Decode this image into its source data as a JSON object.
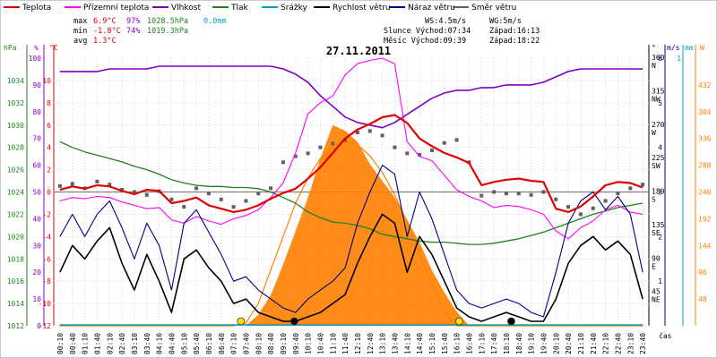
{
  "legend": [
    {
      "label": "Teplota",
      "color": "#e00000"
    },
    {
      "label": "Přízemní teplota",
      "color": "#ff00ff"
    },
    {
      "label": "Vlhkost",
      "color": "#8000c0"
    },
    {
      "label": "Tlak",
      "color": "#208020"
    },
    {
      "label": "Srážky",
      "color": "#00a0c0"
    },
    {
      "label": "Rychlost větru",
      "color": "#000000"
    },
    {
      "label": "Náraz větru",
      "color": "#000080"
    },
    {
      "label": "Směr větru",
      "color": "#606060"
    }
  ],
  "stats": {
    "max": {
      "label": "max",
      "temp": "6.9°C",
      "hum": "97%",
      "press": "1028.5hPa",
      "rain": "0.0mm"
    },
    "min": {
      "label": "min",
      "temp": "-1.8°C",
      "hum": "74%",
      "press": "1019.3hPa"
    },
    "avg": {
      "label": "avg",
      "temp": "1.3°C"
    }
  },
  "wind": {
    "ws": "WS:4.5m/s",
    "wg": "WG:5m/s"
  },
  "sun": {
    "rise": "Slunce Východ:07:34",
    "set": "Západ:16:13"
  },
  "moon": {
    "rise": "Měsíc  Východ:09:39",
    "set": "Západ:18:22"
  },
  "chart_data": {
    "type": "line",
    "title": "27.11.2011",
    "xlabel": "čas",
    "x_ticks": [
      "00:10",
      "00:40",
      "01:10",
      "01:40",
      "02:10",
      "02:40",
      "03:10",
      "03:40",
      "04:10",
      "04:40",
      "05:10",
      "05:40",
      "06:10",
      "06:40",
      "07:10",
      "07:40",
      "08:10",
      "08:40",
      "09:10",
      "09:40",
      "10:10",
      "10:40",
      "11:10",
      "11:40",
      "12:10",
      "12:40",
      "13:10",
      "13:40",
      "14:10",
      "14:40",
      "15:10",
      "15:40",
      "16:10",
      "16:40",
      "17:10",
      "17:40",
      "18:10",
      "18:40",
      "19:10",
      "19:40",
      "20:10",
      "20:40",
      "21:10",
      "21:40",
      "22:10",
      "22:40",
      "23:10",
      "23:40"
    ],
    "axes": {
      "hpa": {
        "label": "hPa",
        "color": "#208020",
        "range": [
          1012,
          1036
        ],
        "ticks": [
          "1034",
          "1032",
          "1030",
          "1028",
          "1026",
          "1024",
          "1022",
          "1020",
          "1018",
          "1016",
          "1014",
          "1012"
        ]
      },
      "percent": {
        "label": "%",
        "color": "#8000c0",
        "range": [
          0,
          100
        ],
        "ticks": [
          "100",
          "90",
          "80",
          "70",
          "60",
          "50",
          "40",
          "30",
          "20",
          "10",
          "0"
        ]
      },
      "celsius": {
        "label": "°C",
        "color": "#e00000",
        "range": [
          -12,
          12
        ],
        "ticks": [
          "10",
          "8",
          "6",
          "4",
          "2",
          "0",
          "-2",
          "-4",
          "-6",
          "-8",
          "-10",
          "-12"
        ]
      },
      "direction": {
        "label": "°",
        "color": "#000000",
        "range": [
          0,
          360
        ],
        "ticks": [
          "360 N",
          "315 NW",
          "270 W",
          "225 SW",
          "180 S",
          "135 SE",
          "90 E",
          "45 NE"
        ]
      },
      "ms": {
        "label": "m/s",
        "color": "#000080",
        "range": [
          0,
          6
        ],
        "ticks": [
          "6",
          "5",
          "4",
          "3",
          "2",
          "1"
        ]
      },
      "mm": {
        "label": "mm",
        "color": "#00a0c0",
        "range": [
          0,
          1
        ],
        "ticks": [
          "1"
        ]
      },
      "w": {
        "label": "W",
        "color": "#ff8000",
        "range": [
          0,
          480
        ],
        "ticks": [
          "432",
          "384",
          "336",
          "288",
          "240",
          "192",
          "144",
          "96",
          "48"
        ]
      }
    },
    "series": [
      {
        "name": "Teplota",
        "unit": "°C",
        "color": "#e00000",
        "values": [
          0.2,
          0.5,
          0.3,
          0.6,
          0.5,
          0.1,
          -0.2,
          0.2,
          0.1,
          -1.0,
          -0.8,
          -0.5,
          -1.2,
          -1.5,
          -1.8,
          -1.6,
          -1.2,
          -0.6,
          -0.1,
          0.3,
          1.2,
          2.2,
          3.5,
          4.8,
          5.6,
          6.1,
          6.7,
          6.9,
          6.2,
          4.8,
          4.1,
          3.5,
          3.1,
          2.6,
          0.6,
          0.9,
          1.1,
          1.2,
          1.0,
          0.9,
          -1.5,
          -1.8,
          -1.3,
          -0.4,
          0.6,
          0.9,
          0.8,
          0.4
        ]
      },
      {
        "name": "Přízemní teplota",
        "unit": "°C",
        "color": "#ff00ff",
        "values": [
          -0.8,
          -0.5,
          -0.6,
          -0.4,
          -0.5,
          -0.9,
          -1.2,
          -1.5,
          -1.4,
          -2.5,
          -2.8,
          -2.2,
          -2.6,
          -2.9,
          -2.4,
          -2.1,
          -1.6,
          -0.5,
          0.8,
          3.5,
          7.0,
          8.0,
          8.6,
          10.5,
          11.5,
          11.8,
          12.0,
          11.5,
          4.5,
          3.2,
          2.8,
          1.5,
          0.2,
          -0.4,
          -0.8,
          -1.4,
          -1.2,
          -1.3,
          -1.6,
          -2.0,
          -3.5,
          -4.2,
          -3.2,
          -2.6,
          -1.6,
          -1.2,
          -1.8,
          -2.0
        ]
      },
      {
        "name": "Vlhkost",
        "unit": "%",
        "color": "#8000c0",
        "values": [
          95,
          95,
          95,
          95,
          96,
          96,
          96,
          96,
          97,
          97,
          97,
          97,
          97,
          97,
          97,
          97,
          97,
          97,
          96,
          94,
          91,
          86,
          82,
          78,
          76,
          75,
          74,
          76,
          79,
          82,
          85,
          87,
          88,
          88,
          89,
          89,
          90,
          90,
          90,
          91,
          93,
          95,
          96,
          96,
          96,
          96,
          96,
          96
        ]
      },
      {
        "name": "Tlak",
        "unit": "hPa",
        "color": "#208020",
        "values": [
          1028.5,
          1028.0,
          1027.6,
          1027.3,
          1027.0,
          1026.7,
          1026.3,
          1026.0,
          1025.6,
          1025.1,
          1024.8,
          1024.6,
          1024.5,
          1024.5,
          1024.4,
          1024.4,
          1024.3,
          1024.0,
          1023.5,
          1023.0,
          1022.2,
          1021.7,
          1021.3,
          1021.2,
          1021.0,
          1020.7,
          1020.2,
          1020.0,
          1019.8,
          1019.6,
          1019.5,
          1019.5,
          1019.4,
          1019.3,
          1019.3,
          1019.4,
          1019.6,
          1019.8,
          1020.1,
          1020.4,
          1020.8,
          1021.2,
          1021.6,
          1022.0,
          1022.3,
          1022.6,
          1022.8,
          1023.0
        ]
      },
      {
        "name": "Rychlost větru",
        "unit": "m/s",
        "color": "#000000",
        "values": [
          1.2,
          1.8,
          1.5,
          1.9,
          2.2,
          1.4,
          0.8,
          1.6,
          1.0,
          0.3,
          1.5,
          1.7,
          1.3,
          1.0,
          0.5,
          0.6,
          0.3,
          0.2,
          0.1,
          0.1,
          0.2,
          0.3,
          0.5,
          0.7,
          1.4,
          2.0,
          2.5,
          2.3,
          1.2,
          2.0,
          1.6,
          1.0,
          0.4,
          0.2,
          0.1,
          0.2,
          0.3,
          0.2,
          0.1,
          0.1,
          0.6,
          1.4,
          1.8,
          2.0,
          1.7,
          1.9,
          1.6,
          0.6
        ]
      },
      {
        "name": "Náraz větru",
        "unit": "m/s",
        "color": "#000080",
        "values": [
          2.0,
          2.5,
          2.0,
          2.5,
          2.8,
          2.2,
          1.5,
          2.3,
          1.8,
          0.8,
          2.3,
          2.6,
          2.1,
          1.6,
          1.0,
          1.1,
          0.8,
          0.6,
          0.4,
          0.3,
          0.6,
          0.8,
          1.0,
          1.3,
          2.3,
          3.0,
          3.6,
          3.4,
          2.0,
          3.0,
          2.4,
          1.6,
          0.8,
          0.5,
          0.4,
          0.5,
          0.6,
          0.5,
          0.3,
          0.2,
          1.2,
          2.3,
          2.8,
          3.0,
          2.6,
          2.9,
          2.5,
          1.2
        ]
      },
      {
        "name": "Směr větru",
        "unit": "°",
        "color": "#606060",
        "values": [
          188,
          191,
          185,
          194,
          190,
          183,
          180,
          176,
          181,
          170,
          160,
          185,
          178,
          170,
          160,
          168,
          178,
          185,
          220,
          228,
          232,
          240,
          245,
          250,
          260,
          262,
          256,
          240,
          232,
          230,
          236,
          246,
          250,
          220,
          175,
          180,
          178,
          178,
          176,
          180,
          170,
          160,
          150,
          158,
          168,
          178,
          185,
          190
        ]
      },
      {
        "name": "Srážky",
        "unit": "mm",
        "color": "#00a0c0",
        "values": [
          0,
          0,
          0,
          0,
          0,
          0,
          0,
          0,
          0,
          0,
          0,
          0,
          0,
          0,
          0,
          0,
          0,
          0,
          0,
          0,
          0,
          0,
          0,
          0,
          0,
          0,
          0,
          0,
          0,
          0,
          0,
          0,
          0,
          0,
          0,
          0,
          0,
          0,
          0,
          0,
          0,
          0,
          0,
          0,
          0,
          0,
          0,
          0
        ]
      },
      {
        "name": "Sluneční záření",
        "unit": "W",
        "color": "#ff8000",
        "values": [
          0,
          0,
          0,
          0,
          0,
          0,
          0,
          0,
          0,
          0,
          0,
          0,
          0,
          0,
          0,
          0,
          20,
          55,
          110,
          170,
          230,
          300,
          360,
          350,
          330,
          290,
          260,
          230,
          190,
          150,
          100,
          60,
          25,
          0,
          0,
          0,
          0,
          0,
          0,
          0,
          0,
          0,
          0,
          0,
          0,
          0,
          0,
          0
        ]
      },
      {
        "name": "Teoretické záření",
        "unit": "W",
        "color": "#ff8000",
        "values": [
          0,
          0,
          0,
          0,
          0,
          0,
          0,
          0,
          0,
          0,
          0,
          0,
          0,
          0,
          0,
          5,
          40,
          100,
          160,
          220,
          265,
          300,
          320,
          330,
          325,
          305,
          275,
          235,
          185,
          130,
          75,
          25,
          0,
          0,
          0,
          0,
          0,
          0,
          0,
          0,
          0,
          0,
          0,
          0,
          0,
          0,
          0,
          0
        ]
      }
    ],
    "markers": [
      {
        "label": "Slunce východ",
        "color": "#ffe000",
        "x_index": 14.6
      },
      {
        "label": "Slunce západ",
        "color": "#ffe000",
        "x_index": 32.2
      },
      {
        "label": "Měsíc východ",
        "color": "#000000",
        "x_index": 18.9
      },
      {
        "label": "Měsíc západ",
        "color": "#000000",
        "x_index": 36.4
      }
    ]
  }
}
